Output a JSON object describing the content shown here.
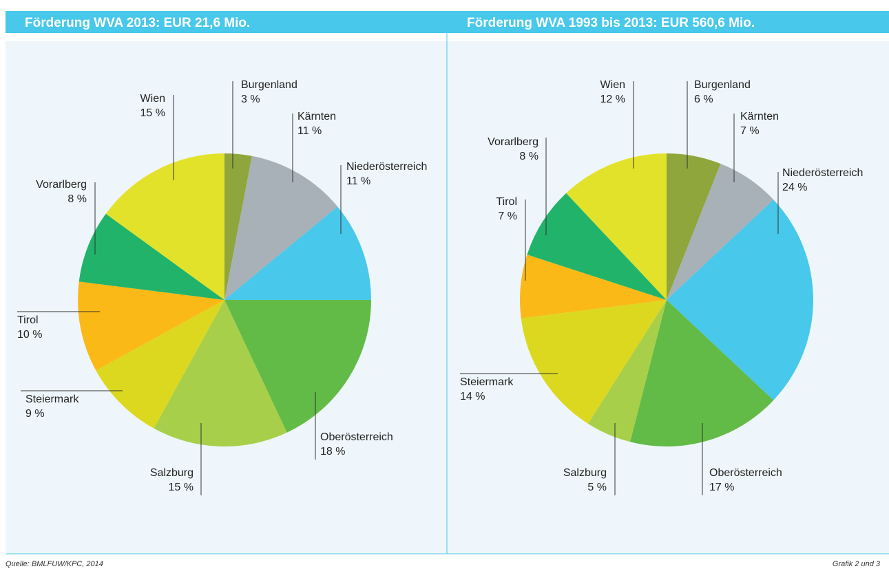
{
  "chart_data": [
    {
      "type": "pie",
      "title": "Förderung WVA 2013: EUR 21,6 Mio.",
      "categories": [
        "Burgenland",
        "Kärnten",
        "Niederösterreich",
        "Oberösterreich",
        "Salzburg",
        "Steiermark",
        "Tirol",
        "Vorarlberg",
        "Wien"
      ],
      "values": [
        3,
        11,
        11,
        18,
        15,
        9,
        10,
        8,
        15
      ],
      "value_labels": [
        "3 %",
        "11 %",
        "11 %",
        "18 %",
        "15 %",
        "9 %",
        "10 %",
        "8 %",
        "15 %"
      ],
      "colors": [
        "#8fa63c",
        "#a8b0b8",
        "#48c8ea",
        "#62bb46",
        "#a7cf4a",
        "#dcd820",
        "#fbb917",
        "#21b36a",
        "#e2e22b"
      ]
    },
    {
      "type": "pie",
      "title": "Förderung WVA 1993 bis 2013: EUR 560,6 Mio.",
      "categories": [
        "Burgenland",
        "Kärnten",
        "Niederösterreich",
        "Oberösterreich",
        "Salzburg",
        "Steiermark",
        "Tirol",
        "Vorarlberg",
        "Wien"
      ],
      "values": [
        6,
        7,
        24,
        17,
        5,
        14,
        7,
        8,
        12
      ],
      "value_labels": [
        "6 %",
        "7 %",
        "24 %",
        "17 %",
        "5 %",
        "14 %",
        "7 %",
        "8 %",
        "12 %"
      ],
      "colors": [
        "#8fa63c",
        "#a8b0b8",
        "#48c8ea",
        "#62bb46",
        "#a7cf4a",
        "#dcd820",
        "#fbb917",
        "#21b36a",
        "#e2e22b"
      ]
    }
  ],
  "footer": {
    "source": "Quelle: BMLFUW/KPC, 2014",
    "figure": "Grafik 2 und 3"
  }
}
